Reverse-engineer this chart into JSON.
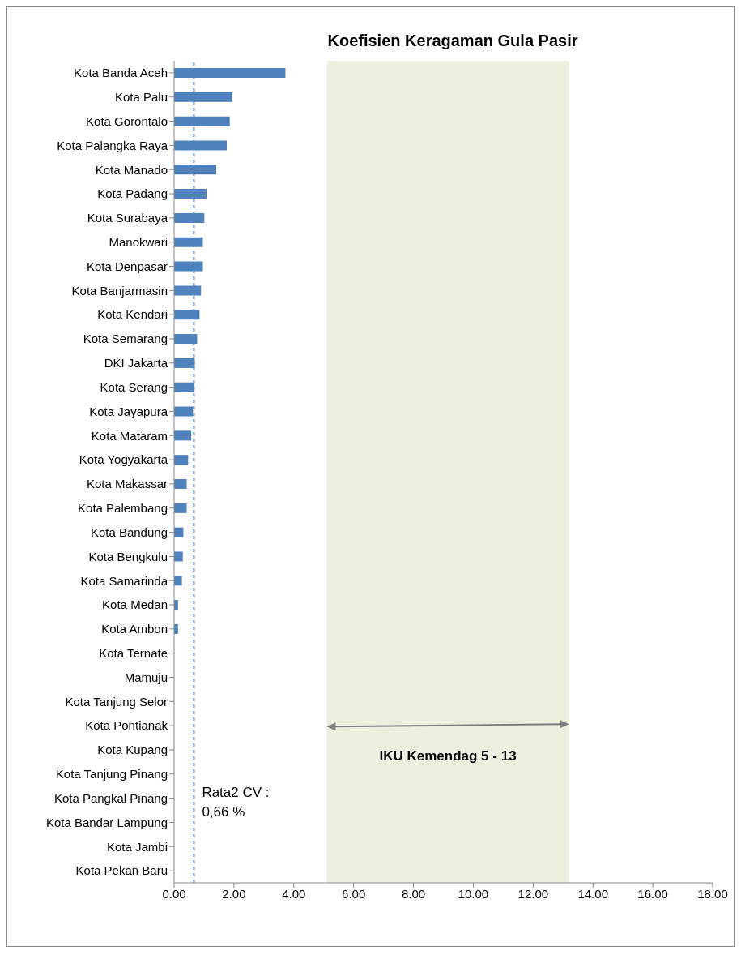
{
  "chart_data": {
    "type": "bar",
    "orientation": "horizontal",
    "title": "Koefisien Keragaman Gula Pasir",
    "categories": [
      "Kota Banda Aceh",
      "Kota Palu",
      "Kota Gorontalo",
      "Kota Palangka Raya",
      "Kota Manado",
      "Kota Padang",
      "Kota Surabaya",
      "Manokwari",
      "Kota Denpasar",
      "Kota Banjarmasin",
      "Kota Kendari",
      "Kota Semarang",
      "DKI Jakarta",
      "Kota Serang",
      "Kota Jayapura",
      "Kota Mataram",
      "Kota Yogyakarta",
      "Kota Makassar",
      "Kota Palembang",
      "Kota Bandung",
      "Kota Bengkulu",
      "Kota Samarinda",
      "Kota Medan",
      "Kota Ambon",
      "Kota Ternate",
      "Mamuju",
      "Kota Tanjung Selor",
      "Kota Pontianak",
      "Kota Kupang",
      "Kota Tanjung Pinang",
      "Kota Pangkal Pinang",
      "Kota Bandar Lampung",
      "Kota Jambi",
      "Kota Pekan Baru"
    ],
    "values": [
      3.72,
      1.94,
      1.86,
      1.76,
      1.41,
      1.09,
      1.01,
      0.96,
      0.96,
      0.9,
      0.85,
      0.77,
      0.69,
      0.68,
      0.63,
      0.57,
      0.47,
      0.42,
      0.42,
      0.31,
      0.29,
      0.26,
      0.13,
      0.13,
      0,
      0,
      0,
      0,
      0,
      0,
      0,
      0,
      0,
      0
    ],
    "color": "#4f81bd",
    "xlim": [
      0,
      18
    ],
    "xticks": [
      {
        "value": 0,
        "label": "0.00"
      },
      {
        "value": 2,
        "label": "2.00"
      },
      {
        "value": 4,
        "label": "4.00"
      },
      {
        "value": 6,
        "label": "6.00"
      },
      {
        "value": 8,
        "label": "8.00"
      },
      {
        "value": 10,
        "label": "10.00"
      },
      {
        "value": 12,
        "label": "12.00"
      },
      {
        "value": 14,
        "label": "14.00"
      },
      {
        "value": 16,
        "label": "16.00"
      },
      {
        "value": 18,
        "label": "18.00"
      }
    ],
    "ref_lines": [
      {
        "axis": "x",
        "value": 0.66,
        "label": "Rata2 CV  :\n0,66 %",
        "color": "#4f81bd",
        "line_style": "dashed"
      }
    ],
    "bands": [
      {
        "axis": "x",
        "from": 5.1,
        "to": 13.2,
        "label": "IKU Kemendag 5 - 13",
        "color": "#ebf1de"
      }
    ]
  }
}
